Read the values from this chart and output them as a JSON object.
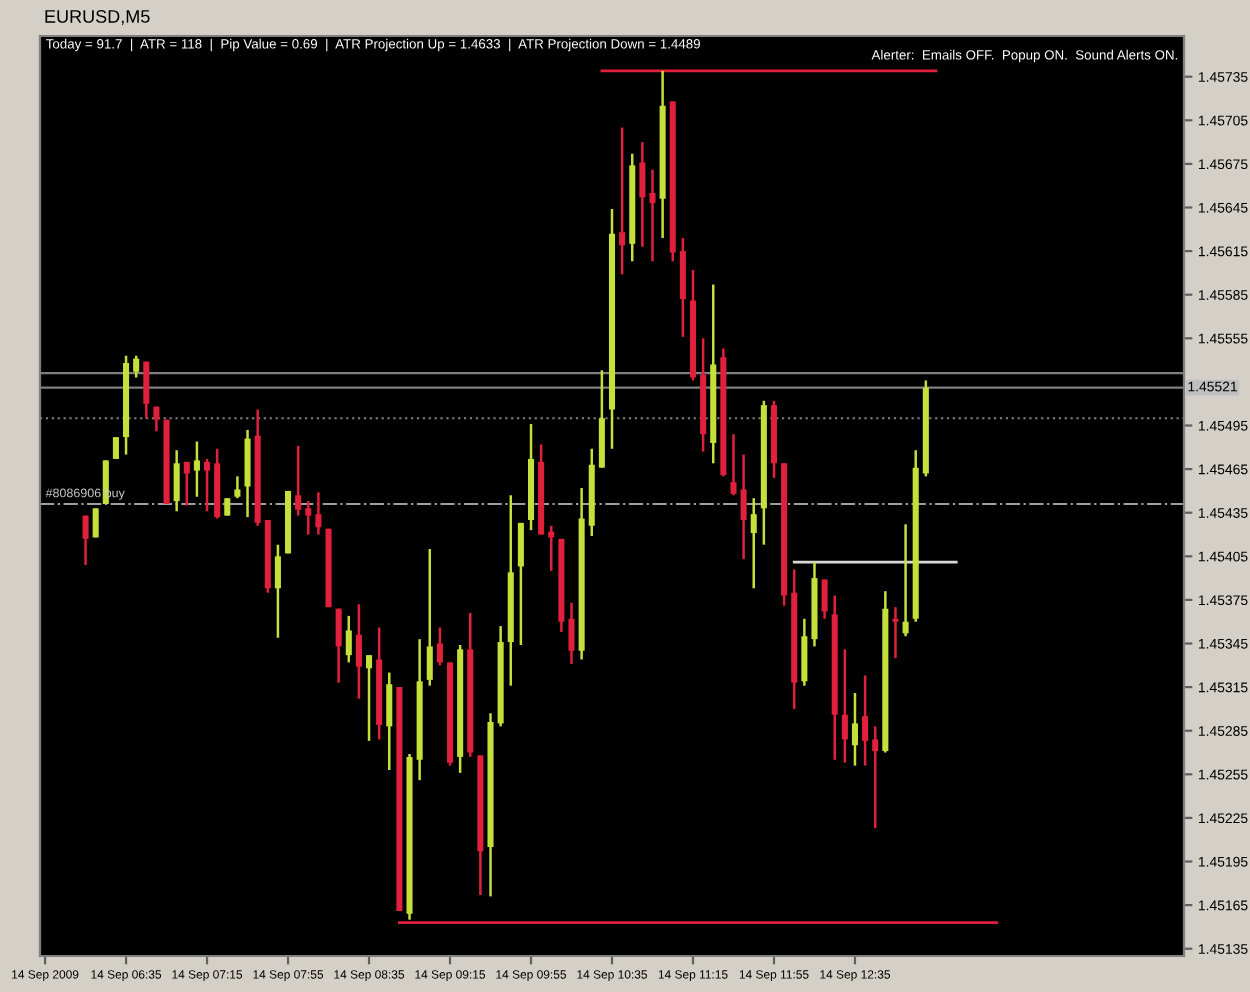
{
  "chart_data": {
    "type": "candlestick",
    "title": "EURUSD,M5",
    "annotations": [
      "Today = 91.7  |  ATR = 118  |  Pip Value = 0.69  |  ATR Projection Up = 1.4633  |  ATR Projection Down = 1.4489",
      "Alerter:  Emails OFF.  Popup ON.  Sound Alerts ON."
    ],
    "categories": [
      "14 Sep 2009",
      null,
      null,
      null,
      null,
      null,
      null,
      null,
      "14 Sep 06:35",
      null,
      null,
      null,
      null,
      null,
      null,
      null,
      "14 Sep 07:15",
      null,
      null,
      null,
      null,
      null,
      null,
      null,
      "14 Sep 07:55",
      null,
      null,
      null,
      null,
      null,
      null,
      null,
      "14 Sep 08:35",
      null,
      null,
      null,
      null,
      null,
      null,
      null,
      "14 Sep 09:15",
      null,
      null,
      null,
      null,
      null,
      null,
      null,
      "14 Sep 09:55",
      null,
      null,
      null,
      null,
      null,
      null,
      null,
      "14 Sep 10:35",
      null,
      null,
      null,
      null,
      null,
      null,
      null,
      "14 Sep 11:15",
      null,
      null,
      null,
      null,
      null,
      null,
      null,
      "14 Sep 11:55",
      null,
      null,
      null,
      null,
      null,
      null,
      null,
      "14 Sep 12:35",
      null,
      null,
      null,
      null,
      null,
      null,
      null,
      null,
      null,
      null,
      null,
      null,
      null,
      null,
      null,
      null,
      null,
      null,
      null,
      null,
      null,
      null,
      null,
      null,
      null,
      null,
      null,
      null,
      null,
      null,
      null,
      null
    ],
    "ohlc": [
      null,
      null,
      null,
      null,
      [
        1.45433,
        1.45433,
        1.45399,
        1.45417
      ],
      [
        1.45418,
        1.45438,
        1.45418,
        1.45438
      ],
      [
        1.45441,
        1.45471,
        1.45441,
        1.45471
      ],
      [
        1.45472,
        1.45487,
        1.45472,
        1.45487
      ],
      [
        1.45487,
        1.45543,
        1.45475,
        1.45538
      ],
      [
        1.45532,
        1.45543,
        1.45528,
        1.45541
      ],
      [
        1.45539,
        1.45539,
        1.455,
        1.4551
      ],
      [
        1.45508,
        1.45508,
        1.45491,
        1.45499
      ],
      [
        1.45499,
        1.45499,
        1.45441,
        1.45441
      ],
      [
        1.45443,
        1.45478,
        1.45436,
        1.45469
      ],
      [
        1.4547,
        1.4547,
        1.4544,
        1.45462
      ],
      [
        1.45464,
        1.45484,
        1.45446,
        1.45471
      ],
      [
        1.4547,
        1.45472,
        1.45436,
        1.45464
      ],
      [
        1.45469,
        1.45479,
        1.45431,
        1.45432
      ],
      [
        1.45433,
        1.45445,
        1.45433,
        1.45445
      ],
      [
        1.45446,
        1.4546,
        1.45445,
        1.45451
      ],
      [
        1.45453,
        1.45492,
        1.45432,
        1.45486
      ],
      [
        1.45488,
        1.45506,
        1.45426,
        1.45428
      ],
      [
        1.4543,
        1.4543,
        1.4538,
        1.45383
      ],
      [
        1.45383,
        1.45413,
        1.45349,
        1.45405
      ],
      [
        1.45407,
        1.4545,
        1.45407,
        1.4545
      ],
      [
        1.45447,
        1.45481,
        1.45433,
        1.45437
      ],
      [
        1.45438,
        1.45443,
        1.4542,
        1.45433
      ],
      [
        1.45434,
        1.45449,
        1.4542,
        1.45425
      ],
      [
        1.45424,
        1.45424,
        1.4537,
        1.4537
      ],
      [
        1.45369,
        1.45369,
        1.45318,
        1.45343
      ],
      [
        1.45337,
        1.45364,
        1.45332,
        1.45354
      ],
      [
        1.45351,
        1.45372,
        1.45307,
        1.45329
      ],
      [
        1.45328,
        1.45337,
        1.45278,
        1.45337
      ],
      [
        1.45334,
        1.45356,
        1.45279,
        1.45289
      ],
      [
        1.45288,
        1.45325,
        1.45258,
        1.45317
      ],
      [
        1.45315,
        1.45315,
        1.45161,
        1.45161
      ],
      [
        1.45159,
        1.45269,
        1.45155,
        1.45267
      ],
      [
        1.45265,
        1.45348,
        1.45251,
        1.45319
      ],
      [
        1.4532,
        1.4541,
        1.45316,
        1.45343
      ],
      [
        1.45345,
        1.45356,
        1.4533,
        1.45332
      ],
      [
        1.45332,
        1.45332,
        1.45261,
        1.45263
      ],
      [
        1.45267,
        1.45344,
        1.45256,
        1.45341
      ],
      [
        1.45341,
        1.45366,
        1.45267,
        1.4527
      ],
      [
        1.45268,
        1.45268,
        1.45172,
        1.45202
      ],
      [
        1.45205,
        1.45297,
        1.45171,
        1.45291
      ],
      [
        1.4529,
        1.45357,
        1.45288,
        1.45346
      ],
      [
        1.45346,
        1.45447,
        1.45316,
        1.45394
      ],
      [
        1.45398,
        1.45428,
        1.45344,
        1.45428
      ],
      [
        1.4543,
        1.45496,
        1.45423,
        1.45472
      ],
      [
        1.4547,
        1.45482,
        1.4542,
        1.4542
      ],
      [
        1.45422,
        1.45426,
        1.45395,
        1.45418
      ],
      [
        1.45417,
        1.45417,
        1.45353,
        1.4536
      ],
      [
        1.45362,
        1.45373,
        1.45331,
        1.4534
      ],
      [
        1.4534,
        1.45452,
        1.45334,
        1.45431
      ],
      [
        1.45426,
        1.45479,
        1.45419,
        1.45468
      ],
      [
        1.45466,
        1.45533,
        1.45466,
        1.455
      ],
      [
        1.45506,
        1.45644,
        1.45479,
        1.45627
      ],
      [
        1.45628,
        1.457,
        1.45599,
        1.45619
      ],
      [
        1.4562,
        1.45682,
        1.45608,
        1.45674
      ],
      [
        1.45676,
        1.4569,
        1.45618,
        1.45652
      ],
      [
        1.45655,
        1.45671,
        1.45608,
        1.45648
      ],
      [
        1.45651,
        1.45739,
        1.45624,
        1.45715
      ],
      [
        1.45718,
        1.45718,
        1.45608,
        1.45614
      ],
      [
        1.45615,
        1.45624,
        1.45556,
        1.45582
      ],
      [
        1.45581,
        1.45602,
        1.45526,
        1.45528
      ],
      [
        1.4553,
        1.45555,
        1.45477,
        1.45489
      ],
      [
        1.45483,
        1.45592,
        1.45469,
        1.45537
      ],
      [
        1.45542,
        1.45548,
        1.4546,
        1.45461
      ],
      [
        1.45456,
        1.45489,
        1.45447,
        1.45448
      ],
      [
        1.45451,
        1.45475,
        1.45403,
        1.4543
      ],
      [
        1.45421,
        1.45445,
        1.45383,
        1.45434
      ],
      [
        1.45438,
        1.45512,
        1.45413,
        1.45509
      ],
      [
        1.45509,
        1.45512,
        1.45459,
        1.45469
      ],
      [
        1.45469,
        1.45469,
        1.45371,
        1.45378
      ],
      [
        1.4538,
        1.45396,
        1.453,
        1.45318
      ],
      [
        1.45319,
        1.45362,
        1.45316,
        1.4535
      ],
      [
        1.45348,
        1.45401,
        1.45343,
        1.4539
      ],
      [
        1.45389,
        1.45389,
        1.45362,
        1.45367
      ],
      [
        1.45365,
        1.45378,
        1.45265,
        1.45296
      ],
      [
        1.45296,
        1.45341,
        1.45263,
        1.45279
      ],
      [
        1.45275,
        1.45311,
        1.45261,
        1.4529
      ],
      [
        1.45295,
        1.45323,
        1.45261,
        1.45278
      ],
      [
        1.45279,
        1.45288,
        1.45218,
        1.45271
      ],
      [
        1.45271,
        1.45381,
        1.4527,
        1.45369
      ],
      [
        1.45362,
        1.4537,
        1.45335,
        1.4536
      ],
      [
        1.45352,
        1.45427,
        1.4535,
        1.4536
      ],
      [
        1.45362,
        1.45478,
        1.4536,
        1.45466
      ],
      [
        1.45462,
        1.45526,
        1.4546,
        1.45521
      ],
      null,
      null,
      null,
      null,
      null,
      null,
      null,
      null,
      null,
      null,
      null,
      null,
      null,
      null,
      null,
      null,
      null,
      null,
      null,
      null,
      null,
      null,
      null,
      null,
      null
    ],
    "colors": [
      null,
      null,
      null,
      null,
      "#e0203c",
      "#c4e03a",
      "#c4e03a",
      "#c4e03a",
      "#c4e03a",
      "#c4e03a",
      "#e0203c",
      "#e0203c",
      "#e0203c",
      "#c4e03a",
      "#e0203c",
      "#c4e03a",
      "#e0203c",
      "#e0203c",
      "#c4e03a",
      "#c4e03a",
      "#c4e03a",
      "#e0203c",
      "#e0203c",
      "#c4e03a",
      "#c4e03a",
      "#e0203c",
      "#e0203c",
      "#e0203c",
      "#e0203c",
      "#e0203c",
      "#c4e03a",
      "#e0203c",
      "#c4e03a",
      "#e0203c",
      "#c4e03a",
      "#e0203c",
      "#c4e03a",
      "#c4e03a",
      "#c4e03a",
      "#e0203c",
      "#e0203c",
      "#c4e03a",
      "#e0203c",
      "#e0203c",
      "#c4e03a",
      "#c4e03a",
      "#c4e03a",
      "#c4e03a",
      "#c4e03a",
      "#e0203c",
      "#e0203c",
      "#e0203c",
      "#e0203c",
      "#c4e03a",
      "#c4e03a",
      "#c4e03a",
      "#c4e03a",
      "#e0203c",
      "#c4e03a",
      "#e0203c",
      "#e0203c",
      "#c4e03a",
      "#e0203c",
      "#e0203c",
      "#e0203c",
      "#e0203c",
      "#c4e03a",
      "#e0203c",
      "#e0203c",
      "#e0203c",
      "#c4e03a",
      "#c4e03a",
      "#e0203c",
      "#e0203c",
      "#e0203c",
      "#c4e03a",
      "#c4e03a",
      "#e0203c",
      "#e0203c",
      "#e0203c",
      "#c4e03a",
      "#e0203c",
      "#e0203c",
      "#c4e03a",
      "#e0203c",
      "#c4e03a",
      "#c4e03a",
      "#c4e03a",
      null,
      null,
      null,
      null,
      null,
      null,
      null,
      null,
      null,
      null,
      null,
      null,
      null,
      null,
      null,
      null,
      null,
      null,
      null,
      null,
      null,
      null,
      null,
      null,
      null
    ],
    "series": [
      {
        "type": "line",
        "color": "#e0203c",
        "values": [
          null,
          null,
          null,
          null,
          null,
          null,
          null,
          null,
          null,
          null,
          null,
          null,
          null,
          null,
          null,
          null,
          null,
          null,
          null,
          null,
          null,
          null,
          null,
          null,
          null,
          null,
          null,
          null,
          null,
          null,
          null,
          null,
          null,
          null,
          null,
          null,
          null,
          null,
          null,
          null,
          null,
          null,
          null,
          null,
          null,
          null,
          null,
          null,
          null,
          null,
          null,
          null,
          null,
          null,
          null,
          1.45739,
          1.45739,
          1.45739,
          1.45739,
          1.45739,
          1.45739,
          1.45739,
          1.45739,
          1.45739,
          1.45739,
          1.45739,
          1.45739,
          1.45739,
          1.45739,
          1.45739,
          1.45739,
          1.45739,
          1.45739,
          1.45739,
          1.45739,
          1.45739,
          1.45739,
          1.45739,
          1.45739,
          1.45739,
          1.45739,
          1.45739,
          1.45739,
          1.45739,
          1.45739,
          1.45739,
          1.45739,
          1.45739,
          1.45739,
          null,
          null,
          null,
          null,
          null,
          null,
          null,
          null,
          null,
          null,
          null,
          null,
          null,
          null,
          null,
          null,
          null,
          null,
          null,
          null,
          null,
          null,
          null,
          null
        ]
      },
      {
        "type": "line",
        "color": "#e0203c",
        "values": [
          null,
          null,
          null,
          null,
          null,
          null,
          null,
          null,
          null,
          null,
          null,
          null,
          null,
          null,
          null,
          null,
          null,
          null,
          null,
          null,
          null,
          null,
          null,
          null,
          null,
          null,
          null,
          null,
          null,
          null,
          null,
          null,
          null,
          null,
          null,
          1.45153,
          1.45153,
          1.45153,
          1.45153,
          1.45153,
          1.45153,
          1.45153,
          1.45153,
          1.45153,
          1.45153,
          1.45153,
          1.45153,
          1.45153,
          1.45153,
          1.45153,
          1.45153,
          1.45153,
          1.45153,
          1.45153,
          1.45153,
          1.45153,
          1.45153,
          1.45153,
          1.45153,
          1.45153,
          1.45153,
          1.45153,
          1.45153,
          1.45153,
          1.45153,
          1.45153,
          1.45153,
          1.45153,
          1.45153,
          1.45153,
          1.45153,
          1.45153,
          1.45153,
          1.45153,
          1.45153,
          1.45153,
          1.45153,
          1.45153,
          1.45153,
          1.45153,
          1.45153,
          1.45153,
          1.45153,
          1.45153,
          1.45153,
          1.45153,
          1.45153,
          1.45153,
          1.45153,
          1.45153,
          1.45153,
          1.45153,
          1.45153,
          1.45153,
          1.45153,
          null,
          null,
          null,
          null,
          null,
          null,
          null,
          null,
          null,
          null,
          null,
          null,
          null,
          null,
          null,
          null,
          null,
          null
        ]
      },
      {
        "type": "line",
        "color": "#d8d8d8",
        "values": [
          null,
          null,
          null,
          null,
          null,
          null,
          null,
          null,
          null,
          null,
          null,
          null,
          null,
          null,
          null,
          null,
          null,
          null,
          null,
          null,
          null,
          null,
          null,
          null,
          null,
          null,
          null,
          null,
          null,
          null,
          null,
          null,
          null,
          null,
          null,
          null,
          null,
          null,
          null,
          null,
          null,
          null,
          null,
          null,
          null,
          null,
          null,
          null,
          null,
          null,
          null,
          null,
          null,
          null,
          null,
          null,
          null,
          null,
          null,
          null,
          null,
          null,
          null,
          null,
          null,
          null,
          null,
          null,
          null,
          null,
          null,
          null,
          null,
          null,
          1.45401,
          1.45401,
          1.45401,
          1.45401,
          1.45401,
          1.45401,
          1.45401,
          1.45401,
          1.45401,
          1.45401,
          1.45401,
          1.45401,
          1.45401,
          1.45401,
          1.45401,
          1.45401,
          1.45401,
          null,
          null,
          null,
          null,
          null,
          null,
          null,
          null,
          null,
          null,
          null,
          null,
          null,
          null,
          null,
          null,
          null,
          null,
          null,
          null,
          null,
          null
        ]
      }
    ],
    "ref_lines": [
      {
        "axis": "y",
        "value": 1.45531,
        "label": null,
        "color": "#808080",
        "line_style": "solid"
      },
      {
        "axis": "y",
        "value": 1.45521,
        "label": "1.45521",
        "color": "#808080",
        "line_style": "solid"
      },
      {
        "axis": "y",
        "value": 1.455,
        "label": null,
        "color": "#808080",
        "line_style": "dotted"
      },
      {
        "axis": "y",
        "value": 1.45441,
        "label": "#8086906 buy",
        "color": "#a0a0a0",
        "line_style": "dashdot"
      }
    ],
    "ylim": [
      1.4513,
      1.45763
    ],
    "yticks": [
      1.45135,
      1.45165,
      1.45195,
      1.45225,
      1.45255,
      1.45285,
      1.45315,
      1.45345,
      1.45375,
      1.45405,
      1.45435,
      1.45465,
      1.45495,
      1.45555,
      1.45585,
      1.45615,
      1.45645,
      1.45675,
      1.45705,
      1.45735
    ]
  }
}
